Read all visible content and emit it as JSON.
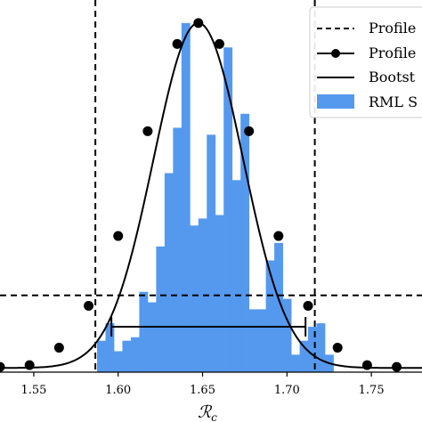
{
  "chart_data": {
    "type": "bar",
    "xlabel": "ℛ",
    "xlabel_subscript": "c",
    "ylabel": "",
    "xlim": [
      1.53,
      1.78
    ],
    "ylim": [
      0,
      1.02
    ],
    "grid": false,
    "legend_placement": "top-right",
    "x_ticks": [
      "1.55",
      "1.60",
      "1.65",
      "1.70",
      "1.75"
    ],
    "x_tick_values": [
      1.55,
      1.6,
      1.65,
      1.7,
      1.75
    ],
    "colors": {
      "histogram": "#5599ee",
      "lines": "#000000"
    },
    "legend": [
      {
        "label": "Profile",
        "style": "dashed"
      },
      {
        "label": "Profile",
        "style": "line-marker"
      },
      {
        "label": "Bootst",
        "style": "solid"
      },
      {
        "label": "RML S",
        "style": "patch"
      }
    ],
    "histogram": {
      "bin_edges": [
        1.5875,
        1.5925,
        1.5975,
        1.6025,
        1.6075,
        1.6125,
        1.6175,
        1.6225,
        1.6275,
        1.6325,
        1.6375,
        1.6425,
        1.6475,
        1.6525,
        1.6575,
        1.6625,
        1.6675,
        1.6725,
        1.6775,
        1.6825,
        1.6875,
        1.6925,
        1.6975,
        1.7025,
        1.7075,
        1.7125,
        1.7175,
        1.7225,
        1.7275
      ],
      "values": [
        0.09,
        0.14,
        0.06,
        0.09,
        0.1,
        0.23,
        0.2,
        0.36,
        0.57,
        0.7,
        1.0,
        0.42,
        0.44,
        0.68,
        0.45,
        0.93,
        0.55,
        0.74,
        0.18,
        0.18,
        0.32,
        0.37,
        0.21,
        0.05,
        0.09,
        0.13,
        0.14,
        0.05
      ]
    },
    "profile_points": {
      "x": [
        1.53,
        1.5475,
        1.565,
        1.5825,
        1.6,
        1.6175,
        1.635,
        1.6475,
        1.66,
        1.6775,
        1.695,
        1.7125,
        1.73,
        1.7475,
        1.765
      ],
      "y": [
        0.015,
        0.02,
        0.07,
        0.19,
        0.39,
        0.69,
        0.94,
        1.0,
        0.94,
        0.69,
        0.39,
        0.19,
        0.07,
        0.02,
        0.015
      ]
    },
    "profile_curve": {
      "mu": 1.6475,
      "sigma": 0.0265
    },
    "threshold_y": 0.22,
    "vertical_lines_x": [
      1.5865,
      1.7165
    ],
    "bootstrap_interval": {
      "low": 1.596,
      "high": 1.711,
      "y": 0.13
    }
  }
}
